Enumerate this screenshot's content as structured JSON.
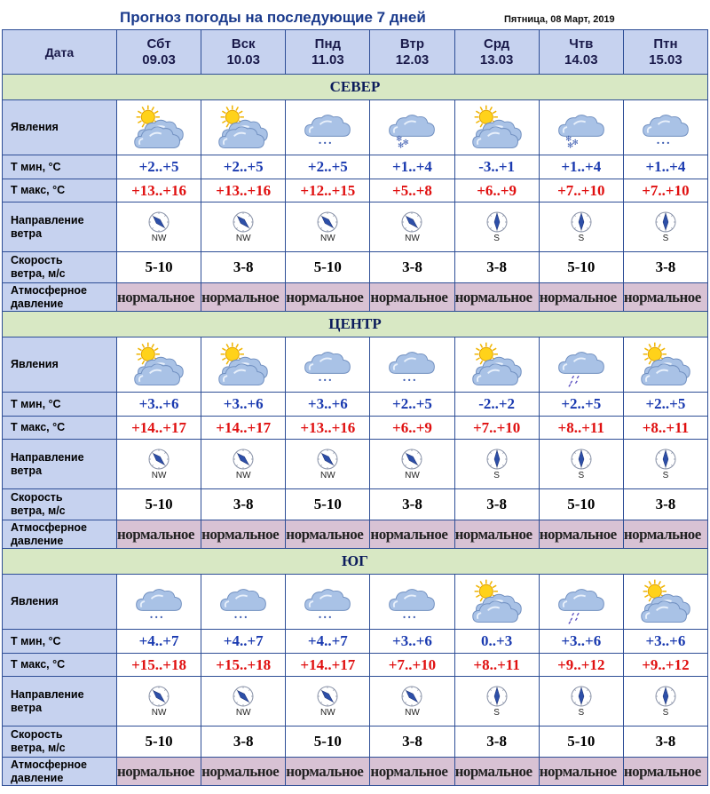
{
  "header": {
    "title": "Прогноз погоды на последующие 7 дней",
    "date": "Пятница, 08 Март, 2019"
  },
  "labels": {
    "date": "Дата",
    "phenomena": "Явления",
    "tmin": "Т мин, °С",
    "tmax": "Т макс, °С",
    "wind_dir_1": "Направление",
    "wind_dir_2": "ветра",
    "wind_speed_1": "Скорость",
    "wind_speed_2": "ветра, м/с",
    "pressure_1": "Атмосферное",
    "pressure_2": "давление"
  },
  "days": [
    {
      "name": "Сбт",
      "date": "09.03"
    },
    {
      "name": "Вск",
      "date": "10.03"
    },
    {
      "name": "Пнд",
      "date": "11.03"
    },
    {
      "name": "Втр",
      "date": "12.03"
    },
    {
      "name": "Срд",
      "date": "13.03"
    },
    {
      "name": "Чтв",
      "date": "14.03"
    },
    {
      "name": "Птн",
      "date": "15.03"
    }
  ],
  "regions": [
    {
      "name": "СЕВЕР",
      "icons": [
        "sun-cloud-icon",
        "sun-cloud-icon",
        "cloud-snow-icon",
        "cloud-heavy-snow-icon",
        "sun-cloud-icon",
        "cloud-heavy-snow-icon",
        "cloud-snow-icon"
      ],
      "tmin": [
        "+2..+5",
        "+2..+5",
        "+2..+5",
        "+1..+4",
        "-3..+1",
        "+1..+4",
        "+1..+4"
      ],
      "tmax": [
        "+13..+16",
        "+13..+16",
        "+12..+15",
        "+5..+8",
        "+6..+9",
        "+7..+10",
        "+7..+10"
      ],
      "wind_dir": [
        "NW",
        "NW",
        "NW",
        "NW",
        "S",
        "S",
        "S"
      ],
      "wind_speed": [
        "5-10",
        "3-8",
        "5-10",
        "3-8",
        "3-8",
        "5-10",
        "3-8"
      ],
      "pressure": [
        "нормальное",
        "нормальное",
        "нормальное",
        "нормальное",
        "нормальное",
        "нормальное",
        "нормальное"
      ]
    },
    {
      "name": "ЦЕНТР",
      "icons": [
        "sun-cloud-icon",
        "sun-cloud-icon",
        "cloud-snow-icon",
        "cloud-snow-icon",
        "sun-cloud-icon",
        "cloud-rain-icon",
        "sun-cloud-icon"
      ],
      "tmin": [
        "+3..+6",
        "+3..+6",
        "+3..+6",
        "+2..+5",
        "-2..+2",
        "+2..+5",
        "+2..+5"
      ],
      "tmax": [
        "+14..+17",
        "+14..+17",
        "+13..+16",
        "+6..+9",
        "+7..+10",
        "+8..+11",
        "+8..+11"
      ],
      "wind_dir": [
        "NW",
        "NW",
        "NW",
        "NW",
        "S",
        "S",
        "S"
      ],
      "wind_speed": [
        "5-10",
        "3-8",
        "5-10",
        "3-8",
        "3-8",
        "5-10",
        "3-8"
      ],
      "pressure": [
        "нормальное",
        "нормальное",
        "нормальное",
        "нормальное",
        "нормальное",
        "нормальное",
        "нормальное"
      ]
    },
    {
      "name": "ЮГ",
      "icons": [
        "cloud-snow-icon",
        "cloud-snow-icon",
        "cloud-snow-icon",
        "cloud-snow-icon",
        "sun-cloud-icon",
        "cloud-rain-icon",
        "sun-cloud-icon"
      ],
      "tmin": [
        "+4..+7",
        "+4..+7",
        "+4..+7",
        "+3..+6",
        "0..+3",
        "+3..+6",
        "+3..+6"
      ],
      "tmax": [
        "+15..+18",
        "+15..+18",
        "+14..+17",
        "+7..+10",
        "+8..+11",
        "+9..+12",
        "+9..+12"
      ],
      "wind_dir": [
        "NW",
        "NW",
        "NW",
        "NW",
        "S",
        "S",
        "S"
      ],
      "wind_speed": [
        "5-10",
        "3-8",
        "5-10",
        "3-8",
        "3-8",
        "5-10",
        "3-8"
      ],
      "pressure": [
        "нормальное",
        "нормальное",
        "нормальное",
        "нормальное",
        "нормальное",
        "нормальное",
        "нормальное"
      ]
    }
  ]
}
